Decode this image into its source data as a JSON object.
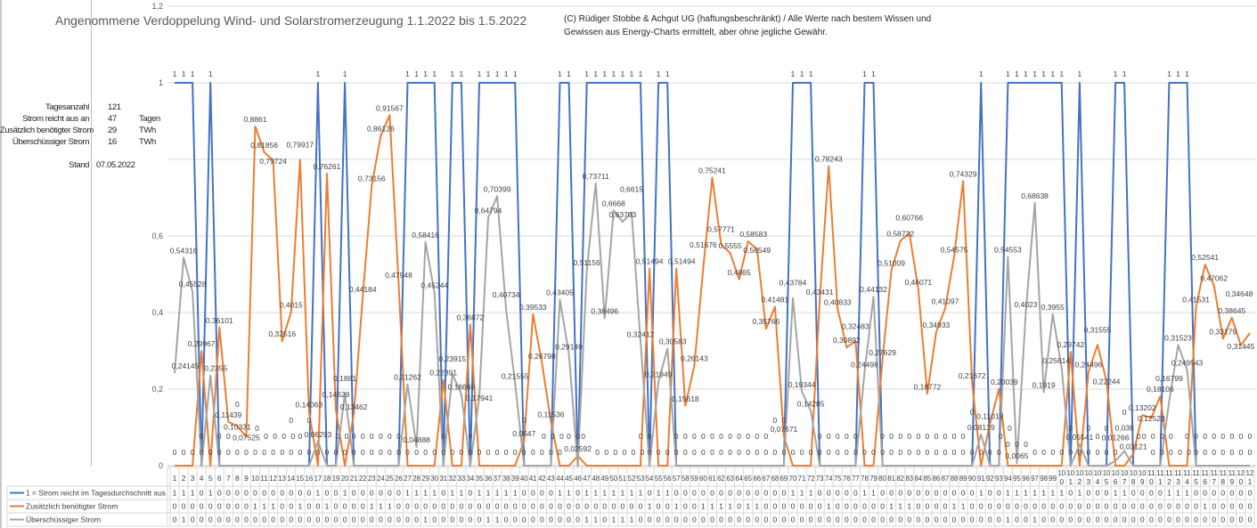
{
  "header": {
    "title": "Angenommene Verdoppelung Wind- und Solarstromerzeugung 1.1.2022 bis 1.5.2022",
    "copyright_line1": "(C) Rüdiger Stobbe & Achgut UG (haftungsbeschränkt) / Alle Werte nach bestem Wissen und",
    "copyright_line2": "Gewissen aus Energy-Charts ermittelt, aber ohne jegliche Gewähr."
  },
  "stats": {
    "days_label": "Tagesanzahl",
    "days_value": "121",
    "enough_label": "Strom reicht aus an",
    "enough_value": "47",
    "enough_unit": "Tagen",
    "extra_label": "Zusätzlich benötigter Strom",
    "extra_value": "29",
    "extra_unit": "TWh",
    "surplus_label": "Überschüssiger Strom",
    "surplus_value": "16",
    "surplus_unit": "TWh",
    "date_label": "Stand",
    "date_value": "07.05.2022"
  },
  "chart_data": {
    "type": "line",
    "title": "Angenommene Verdoppelung Wind- und Solarstromerzeugung 1.1.2022 bis 1.5.2022",
    "xlabel": "",
    "ylabel": "",
    "ylim": [
      0,
      1.2
    ],
    "yticks": [
      "0",
      "0,2",
      "0,4",
      "0,6",
      "1",
      "1,2"
    ],
    "ytick_values": [
      0,
      0.2,
      0.4,
      0.6,
      1,
      1.2
    ],
    "grid": true,
    "gridlines": [
      0,
      0.2,
      0.4,
      0.6,
      0.8,
      1,
      1.2
    ],
    "data_labels": true,
    "legend": "data-table-bottom",
    "x_count": 121,
    "series": [
      {
        "name": "1 = Strom reicht im Tagesdurchschnitt aus",
        "color": "#4472c4",
        "values": [
          1,
          1,
          1,
          0,
          1,
          0,
          0,
          0,
          0,
          0,
          0,
          0,
          0,
          0,
          0,
          0,
          1,
          0,
          0,
          1,
          0,
          0,
          0,
          0,
          0,
          0,
          1,
          1,
          1,
          1,
          0,
          1,
          1,
          0,
          1,
          1,
          1,
          1,
          1,
          0,
          0,
          0,
          0,
          1,
          1,
          0,
          1,
          1,
          1,
          1,
          1,
          1,
          1,
          0,
          1,
          1,
          0,
          0,
          0,
          0,
          0,
          0,
          0,
          0,
          0,
          0,
          0,
          0,
          0,
          1,
          1,
          1,
          0,
          0,
          0,
          0,
          0,
          1,
          1,
          0,
          0,
          0,
          0,
          0,
          0,
          0,
          0,
          0,
          0,
          0,
          1,
          0,
          0,
          1,
          1,
          1,
          1,
          1,
          1,
          1,
          0,
          1,
          0,
          0,
          0,
          1,
          1,
          0,
          0,
          0,
          0,
          1,
          1,
          1,
          0,
          0,
          0,
          0,
          0,
          0,
          0
        ]
      },
      {
        "name": "Zusätzlich benötigter Strom",
        "color": "#ed7d31",
        "values": [
          0,
          0,
          0,
          0.29967,
          0,
          0.36101,
          0.11439,
          0.10331,
          0.07525,
          0.8861,
          0.81856,
          0.79724,
          0.32516,
          0.4015,
          0.79917,
          0.14063,
          0,
          0.76261,
          0.14629,
          0,
          0.13462,
          0.44184,
          0.73156,
          0.86126,
          0.91567,
          0.47948,
          0,
          0,
          0,
          0,
          0.22391,
          0,
          0,
          0.36872,
          0,
          0,
          0,
          0,
          0,
          0.0647,
          0.39533,
          0.26798,
          0.11536,
          0,
          0,
          0.02592,
          0,
          0,
          0,
          0,
          0,
          0,
          0,
          0.51494,
          0,
          0,
          0.51494,
          0.15618,
          0.26143,
          0.51676,
          0.75241,
          0.57771,
          0.5555,
          0.4865,
          0.58583,
          0.56549,
          0.35766,
          0.41481,
          0.07671,
          0,
          0,
          0,
          0.43431,
          0.78243,
          0.40833,
          0.30892,
          0.32483,
          0,
          0,
          0.27629,
          0.51009,
          0.58722,
          0.60766,
          0.46071,
          0.18772,
          0.34933,
          0.41097,
          0.54575,
          0.74329,
          0.21672,
          0,
          0.11019,
          0.20039,
          0,
          0,
          0,
          0,
          0,
          0,
          0,
          0.29742,
          0,
          0.24496,
          0.31555,
          0.22244,
          0,
          0,
          0.03121,
          0.13202,
          0.12523,
          0.18106,
          0,
          0,
          0,
          0.41531,
          0.52541,
          0.47062,
          0.33179,
          0.38645,
          0.31445,
          0.34648
        ]
      },
      {
        "name": "Überschüssiger Strom",
        "color": "#a5a5a5",
        "values": [
          0.24145,
          0.54316,
          0.45528,
          0,
          0.2355,
          0,
          0,
          0,
          0,
          0,
          0,
          0,
          0,
          0,
          0,
          0,
          0.06293,
          0,
          0,
          0.1881,
          0,
          0,
          0,
          0,
          0,
          0,
          0.21262,
          0.04888,
          0.58416,
          0.45244,
          0,
          0.23915,
          0.18669,
          0,
          0.17941,
          0.64794,
          0.70399,
          0.40734,
          0.21555,
          0,
          0,
          0,
          0,
          0.43405,
          0.29149,
          0,
          0.51156,
          0.73711,
          0.38496,
          0.6668,
          0.63703,
          0.6615,
          0.32412,
          0,
          0.21949,
          0.30583,
          0,
          0,
          0,
          0,
          0,
          0,
          0,
          0,
          0,
          0,
          0,
          0,
          0,
          0.43784,
          0.19344,
          0.14285,
          0,
          0,
          0,
          0,
          0,
          0.24498,
          0.44132,
          0,
          0,
          0,
          0,
          0,
          0,
          0,
          0,
          0,
          0,
          0,
          0.08139,
          0,
          0,
          0.54553,
          0.0065,
          0.4023,
          0.68638,
          0.1919,
          0.3955,
          0.25614,
          0,
          0.05541,
          0,
          0,
          0,
          0.01266,
          0.038,
          0,
          0,
          0,
          0,
          0.16799,
          0.31523,
          0.249543,
          0,
          0,
          0,
          0,
          0,
          0,
          0
        ]
      }
    ]
  }
}
